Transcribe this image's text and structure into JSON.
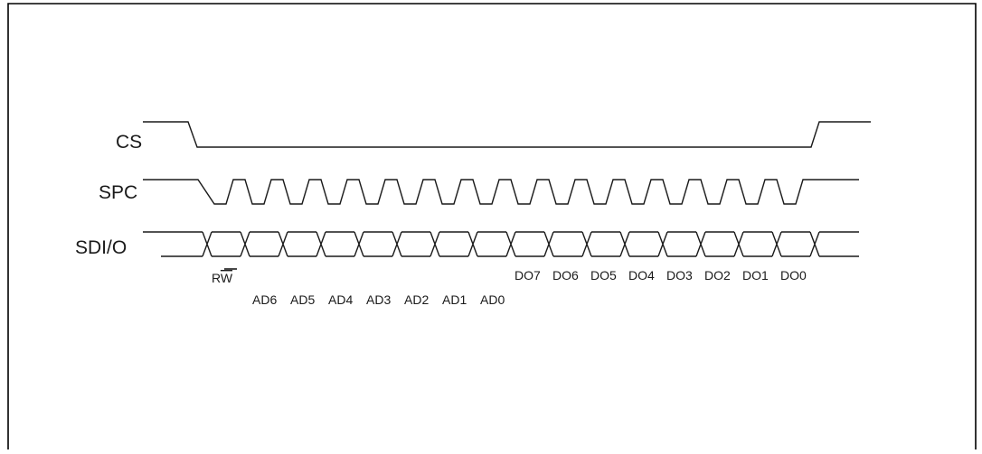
{
  "signals": [
    {
      "id": "cs",
      "label": "CS"
    },
    {
      "id": "spc",
      "label": "SPC"
    },
    {
      "id": "sdio",
      "label": "SDI/O"
    }
  ],
  "rw_label": {
    "prefix": "R",
    "overlined": "W"
  },
  "address_bits": [
    "AD6",
    "AD5",
    "AD4",
    "AD3",
    "AD2",
    "AD1",
    "AD0"
  ],
  "data_bits": [
    "DO7",
    "DO6",
    "DO5",
    "DO4",
    "DO3",
    "DO2",
    "DO1",
    "DO0"
  ],
  "spc_cycles": 16,
  "colors": {
    "line": "#1a1a1a",
    "background": "#ffffff"
  }
}
